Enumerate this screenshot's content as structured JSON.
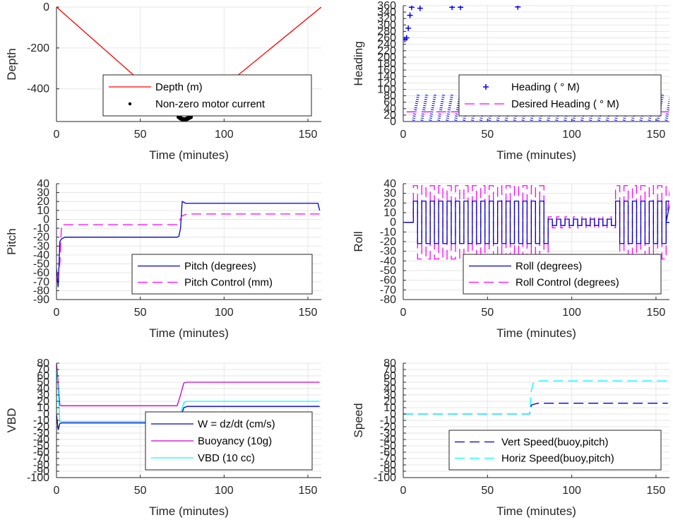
{
  "figure": {
    "background": "#ffffff",
    "grid": true
  },
  "chart_data": [
    {
      "id": "depth",
      "type": "line",
      "xlabel": "Time (minutes)",
      "ylabel": "Depth",
      "xlim": [
        0,
        158
      ],
      "ylim": [
        -560,
        0
      ],
      "xticks": [
        0,
        50,
        100,
        150
      ],
      "yticks": [
        -400,
        -200,
        0
      ],
      "legend_position": "bottom-center",
      "series": [
        {
          "name": "Depth (m)",
          "color": "#ff0000",
          "style": "solid",
          "x": [
            0,
            76,
            158
          ],
          "y": [
            0,
            -550,
            0
          ]
        },
        {
          "name": "Non-zero motor current",
          "color": "#000000",
          "style": "dots",
          "x": [
            73,
            74,
            75,
            76,
            77,
            78,
            79,
            80
          ],
          "y": [
            -538,
            -544,
            -548,
            -550,
            -549,
            -546,
            -542,
            -538
          ]
        }
      ]
    },
    {
      "id": "heading",
      "type": "scatter",
      "xlabel": "Time (minutes)",
      "ylabel": "Heading",
      "xlim": [
        0,
        158
      ],
      "ylim": [
        0,
        360
      ],
      "xticks": [
        0,
        50,
        100,
        150
      ],
      "yticks": [
        0,
        20,
        40,
        60,
        80,
        100,
        120,
        140,
        160,
        180,
        200,
        220,
        240,
        260,
        280,
        300,
        320,
        340,
        360
      ],
      "legend_position": "bottom-right",
      "series": [
        {
          "name": "Heading (  ° M)",
          "color": "#0000ff",
          "style": "plus",
          "x": [
            1,
            2,
            3,
            4,
            5,
            10,
            29,
            34,
            68
          ],
          "y": [
            255,
            260,
            290,
            330,
            355,
            352,
            355,
            355,
            356
          ]
        },
        {
          "name": "Desired Heading (  ° M)",
          "color": "#ff00ff",
          "style": "dashed",
          "x": [
            2,
            158
          ],
          "y": [
            30,
            30
          ]
        }
      ],
      "oscillation": {
        "x_start": 6,
        "x_end": 158,
        "period_min": 5,
        "y_low": 3,
        "y_high": 85
      }
    },
    {
      "id": "pitch",
      "type": "line",
      "xlabel": "Time (minutes)",
      "ylabel": "Pitch",
      "xlim": [
        0,
        158
      ],
      "ylim": [
        -90,
        40
      ],
      "xticks": [
        0,
        50,
        100,
        150
      ],
      "yticks": [
        -90,
        -80,
        -70,
        -60,
        -50,
        -40,
        -30,
        -20,
        -10,
        0,
        10,
        20,
        30,
        40
      ],
      "legend_position": "bottom-right",
      "series": [
        {
          "name": "Pitch (degrees)",
          "color": "#0000cc",
          "style": "solid",
          "x": [
            0,
            1,
            2,
            3,
            5,
            72,
            73,
            74,
            75,
            77,
            100,
            130,
            156,
            157
          ],
          "y": [
            -55,
            -76,
            -25,
            -22,
            -20,
            -20,
            -19,
            -10,
            20,
            18,
            18,
            18,
            18,
            10
          ]
        },
        {
          "name": "Pitch Control (mm)",
          "color": "#ff00ff",
          "style": "dashed",
          "x": [
            0,
            2,
            3,
            72,
            75,
            78,
            157
          ],
          "y": [
            -70,
            -50,
            -6,
            -6,
            4,
            6,
            6
          ]
        }
      ]
    },
    {
      "id": "roll",
      "type": "line",
      "xlabel": "Time (minutes)",
      "ylabel": "Roll",
      "xlim": [
        0,
        158
      ],
      "ylim": [
        -80,
        40
      ],
      "xticks": [
        0,
        50,
        100,
        150
      ],
      "yticks": [
        -80,
        -70,
        -60,
        -50,
        -40,
        -30,
        -20,
        -10,
        0,
        10,
        20,
        30,
        40
      ],
      "legend_position": "bottom-right",
      "series": [
        {
          "name": "Roll (degrees)",
          "color": "#0000cc",
          "style": "solid",
          "x": [
            0,
            158
          ],
          "y": [
            0,
            0
          ]
        },
        {
          "name": "Roll Control (degrees)",
          "color": "#ff00ff",
          "style": "dashed",
          "x": [
            0,
            158
          ],
          "y": [
            0,
            0
          ]
        }
      ],
      "oscillation": {
        "x_start": 6,
        "x_end": 156,
        "period_min": 5,
        "roll_amp": 22,
        "control_amp": 38
      }
    },
    {
      "id": "vbd",
      "type": "line",
      "xlabel": "Time (minutes)",
      "ylabel": "VBD",
      "xlim": [
        0,
        158
      ],
      "ylim": [
        -100,
        80
      ],
      "xticks": [
        0,
        50,
        100,
        150
      ],
      "yticks": [
        -100,
        -90,
        -80,
        -70,
        -60,
        -50,
        -40,
        -30,
        -20,
        -10,
        0,
        10,
        20,
        30,
        40,
        50,
        60,
        70,
        80
      ],
      "legend_position": "bottom-right",
      "series": [
        {
          "name": "W = dz/dt (cm/s)",
          "color": "#0000cc",
          "style": "solid",
          "x": [
            0,
            1,
            2,
            3,
            4,
            70,
            72,
            74,
            76,
            78,
            157
          ],
          "y": [
            0,
            -25,
            -15,
            -14,
            -14,
            -14,
            -12,
            -5,
            10,
            12,
            12
          ]
        },
        {
          "name": "Buoyancy (10g)",
          "color": "#cc00cc",
          "style": "solid",
          "x": [
            0,
            1,
            2,
            3,
            72,
            74,
            76,
            78,
            157
          ],
          "y": [
            80,
            50,
            14,
            13,
            13,
            30,
            49,
            50,
            50
          ]
        },
        {
          "name": "VBD (10 cc)",
          "color": "#00ffff",
          "style": "solid",
          "x": [
            0,
            1,
            2,
            3,
            72,
            74,
            76,
            78,
            157
          ],
          "y": [
            70,
            40,
            -12,
            -12,
            -12,
            0,
            18,
            20,
            20
          ]
        }
      ]
    },
    {
      "id": "speed",
      "type": "line",
      "xlabel": "Time (minutes)",
      "ylabel": "Speed",
      "xlim": [
        0,
        158
      ],
      "ylim": [
        -100,
        80
      ],
      "xticks": [
        0,
        50,
        100,
        150
      ],
      "yticks": [
        -100,
        -90,
        -80,
        -70,
        -60,
        -50,
        -40,
        -30,
        -20,
        -10,
        0,
        10,
        20,
        30,
        40,
        50,
        60,
        70,
        80
      ],
      "legend_position": "bottom-right",
      "series": [
        {
          "name": "Vert Speed(buoy,pitch)",
          "color": "#0000cc",
          "style": "dashed",
          "x": [
            0,
            75,
            76,
            77,
            80,
            157
          ],
          "y": [
            0,
            0,
            14,
            15,
            17,
            17
          ]
        },
        {
          "name": "Horiz Speed(buoy,pitch)",
          "color": "#00ffff",
          "style": "dashed",
          "x": [
            0,
            75,
            76,
            77,
            80,
            157
          ],
          "y": [
            0,
            0,
            36,
            48,
            52,
            52
          ]
        }
      ]
    }
  ]
}
